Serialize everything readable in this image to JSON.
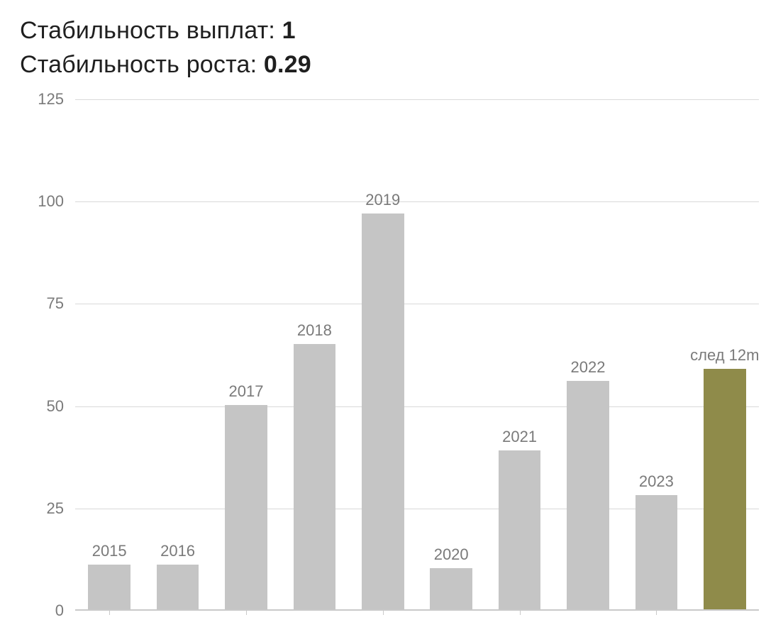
{
  "metrics": [
    {
      "label": "Стабильность выплат: ",
      "value": "1"
    },
    {
      "label": "Стабильность роста: ",
      "value": "0.29"
    }
  ],
  "chart": {
    "type": "bar",
    "background_color": "#ffffff",
    "grid_color": "#d9d9d9",
    "axis_color": "#c9c9c9",
    "tick_label_color": "#7a7a7a",
    "tick_label_fontsize": 22,
    "bar_label_fontsize": 22,
    "default_bar_color": "#c5c5c5",
    "highlight_bar_color": "#8f8b4a",
    "y": {
      "min": 0,
      "max": 125,
      "ticks": [
        0,
        25,
        50,
        75,
        100,
        125
      ]
    },
    "bar_width_ratio": 0.62,
    "bars": [
      {
        "label": "2015",
        "value": 11,
        "highlight": false
      },
      {
        "label": "2016",
        "value": 11,
        "highlight": false
      },
      {
        "label": "2017",
        "value": 50,
        "highlight": false
      },
      {
        "label": "2018",
        "value": 65,
        "highlight": false
      },
      {
        "label": "2019",
        "value": 97,
        "highlight": false
      },
      {
        "label": "2020",
        "value": 10,
        "highlight": false
      },
      {
        "label": "2021",
        "value": 39,
        "highlight": false
      },
      {
        "label": "2022",
        "value": 56,
        "highlight": false
      },
      {
        "label": "2023",
        "value": 28,
        "highlight": false
      },
      {
        "label": "след 12m",
        "value": 59,
        "highlight": true
      }
    ],
    "x_tick_indices": [
      0,
      2,
      4,
      6,
      8
    ]
  }
}
